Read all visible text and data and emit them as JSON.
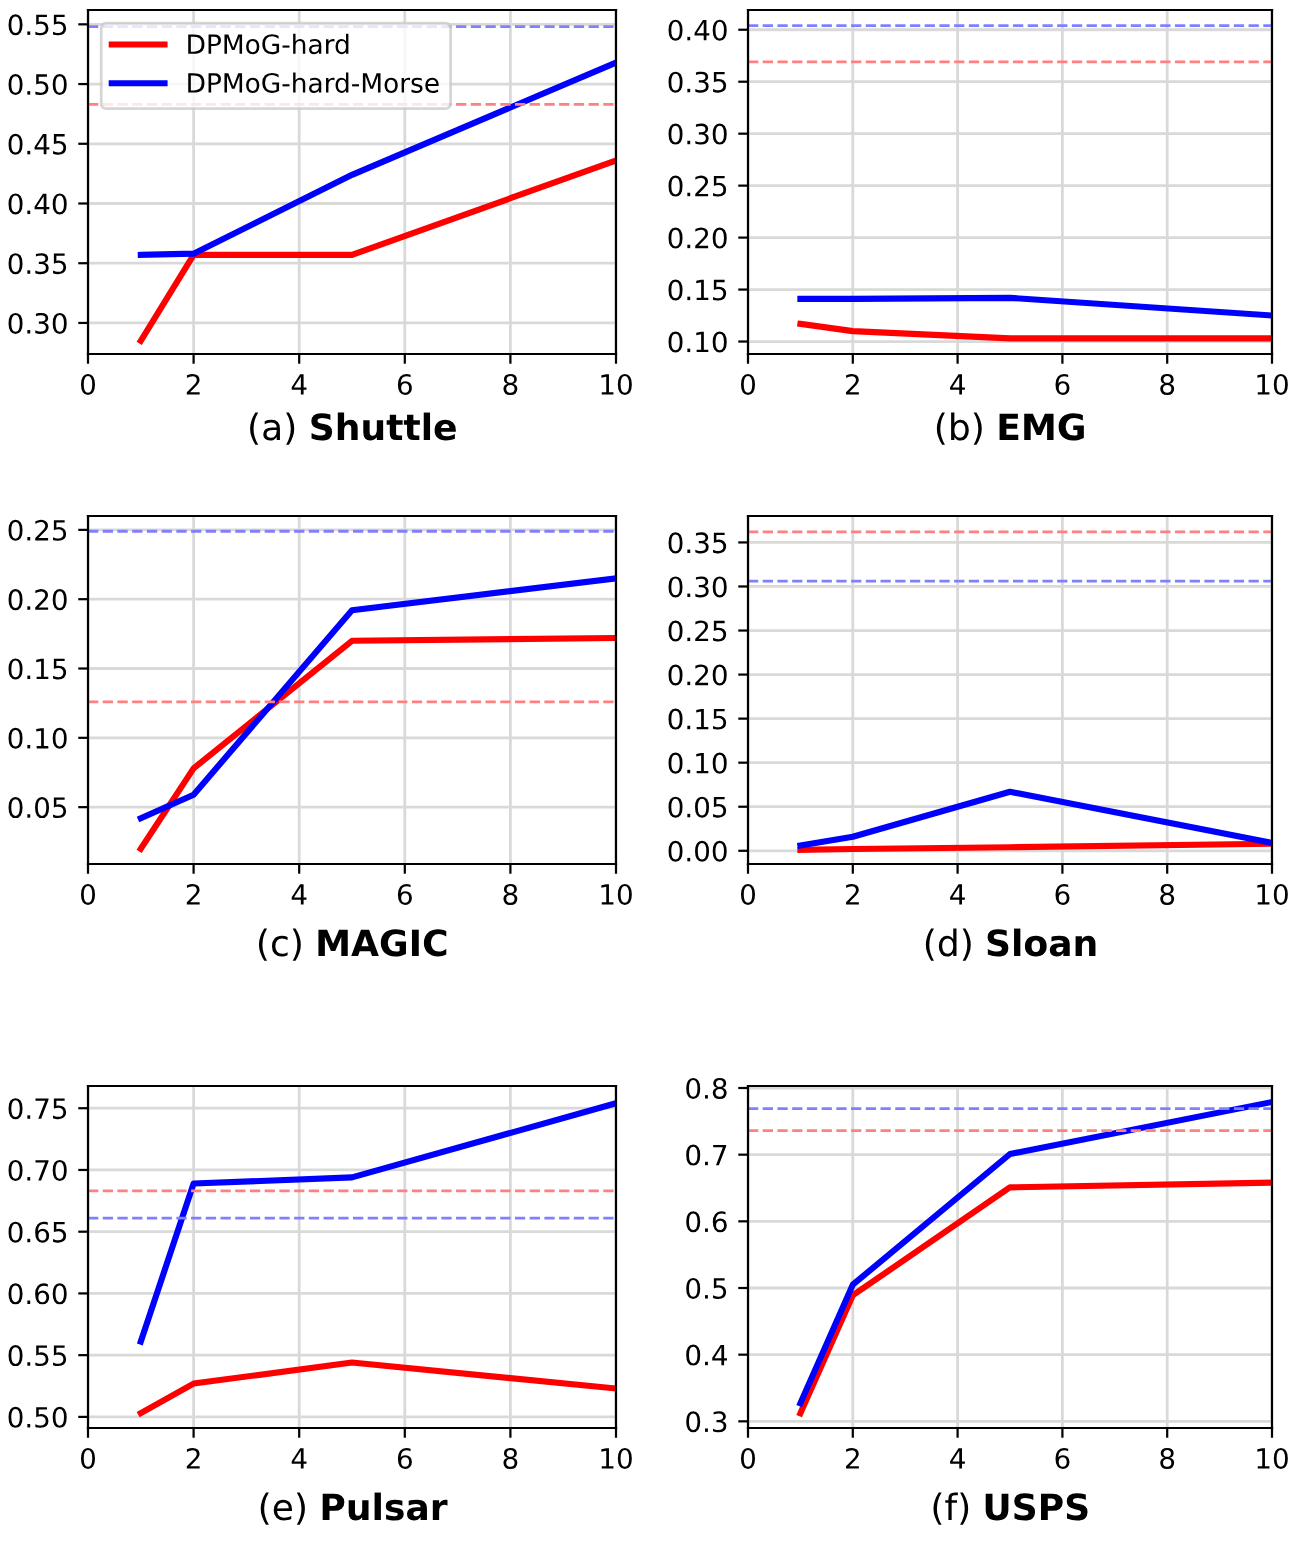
{
  "chart_data": [
    {
      "type": "line",
      "title": "(a) Shuttle",
      "x": [
        1,
        2,
        5,
        10
      ],
      "xlim": [
        0,
        10
      ],
      "xticks": [
        0,
        2,
        4,
        6,
        8,
        10
      ],
      "ylim": [
        0.274,
        0.562
      ],
      "yticks": [
        {
          "value": 0.3,
          "label": "0.30"
        },
        0.35,
        {
          "value": 0.4,
          "label": "0.40"
        },
        0.45,
        {
          "value": 0.5,
          "label": "0.50"
        },
        0.55
      ],
      "grid": true,
      "legend": "top left",
      "series": [
        {
          "name": "DPMoG-hard",
          "color": "#ff0000",
          "values": [
            0.285,
            0.357,
            0.357,
            0.436
          ]
        },
        {
          "name": "DPMoG-hard-Morse",
          "color": "#0000ff",
          "values": [
            0.357,
            0.358,
            0.424,
            0.518
          ]
        }
      ],
      "ref_lines": [
        {
          "axis": "y",
          "value": 0.483,
          "color": "#ff8080",
          "line_style": "dashed"
        },
        {
          "axis": "y",
          "value": 0.548,
          "color": "#8080ff",
          "line_style": "dashed"
        }
      ]
    },
    {
      "type": "line",
      "title": "(b) EMG",
      "x": [
        1,
        2,
        5,
        10
      ],
      "xlim": [
        0,
        10
      ],
      "xticks": [
        0,
        2,
        4,
        6,
        8,
        10
      ],
      "ylim": [
        0.088,
        0.419
      ],
      "yticks": [
        {
          "value": 0.1,
          "label": "0.10"
        },
        0.15,
        {
          "value": 0.2,
          "label": "0.20"
        },
        0.25,
        {
          "value": 0.3,
          "label": "0.30"
        },
        0.35,
        {
          "value": 0.4,
          "label": "0.40"
        }
      ],
      "grid": true,
      "series": [
        {
          "color": "#ff0000",
          "values": [
            0.117,
            0.11,
            0.103,
            0.103
          ]
        },
        {
          "color": "#0000ff",
          "values": [
            0.141,
            0.141,
            0.142,
            0.125
          ]
        }
      ],
      "ref_lines": [
        {
          "axis": "y",
          "value": 0.369,
          "color": "#ff8080",
          "line_style": "dashed"
        },
        {
          "axis": "y",
          "value": 0.404,
          "color": "#8080ff",
          "line_style": "dashed"
        }
      ]
    },
    {
      "type": "line",
      "title": "(c) MAGIC",
      "x": [
        1,
        2,
        5,
        10
      ],
      "xlim": [
        0,
        10
      ],
      "xticks": [
        0,
        2,
        4,
        6,
        8,
        10
      ],
      "ylim": [
        0.009,
        0.26
      ],
      "yticks": [
        0.05,
        {
          "value": 0.1,
          "label": "0.10"
        },
        0.15,
        {
          "value": 0.2,
          "label": "0.20"
        },
        0.25
      ],
      "grid": true,
      "series": [
        {
          "color": "#ff0000",
          "values": [
            0.02,
            0.078,
            0.17,
            0.172
          ]
        },
        {
          "color": "#0000ff",
          "values": [
            0.042,
            0.059,
            0.192,
            0.215
          ]
        }
      ],
      "ref_lines": [
        {
          "axis": "y",
          "value": 0.126,
          "color": "#ff8080",
          "line_style": "dashed"
        },
        {
          "axis": "y",
          "value": 0.249,
          "color": "#8080ff",
          "line_style": "dashed"
        }
      ]
    },
    {
      "type": "line",
      "title": "(d) Sloan",
      "x": [
        1,
        2,
        5,
        10
      ],
      "xlim": [
        0,
        10
      ],
      "xticks": [
        0,
        2,
        4,
        6,
        8,
        10
      ],
      "ylim": [
        -0.015,
        0.38
      ],
      "yticks": [
        {
          "value": 0.0,
          "label": "0.00"
        },
        0.05,
        {
          "value": 0.1,
          "label": "0.10"
        },
        0.15,
        {
          "value": 0.2,
          "label": "0.20"
        },
        0.25,
        {
          "value": 0.3,
          "label": "0.30"
        },
        0.35
      ],
      "grid": true,
      "series": [
        {
          "color": "#ff0000",
          "values": [
            0.001,
            0.002,
            0.004,
            0.008
          ]
        },
        {
          "color": "#0000ff",
          "values": [
            0.006,
            0.016,
            0.067,
            0.009
          ]
        }
      ],
      "ref_lines": [
        {
          "axis": "y",
          "value": 0.362,
          "color": "#ff8080",
          "line_style": "dashed"
        },
        {
          "axis": "y",
          "value": 0.306,
          "color": "#8080ff",
          "line_style": "dashed"
        }
      ]
    },
    {
      "type": "line",
      "title": "(e) Pulsar",
      "x": [
        1,
        2,
        5,
        10
      ],
      "xlim": [
        0,
        10
      ],
      "xticks": [
        0,
        2,
        4,
        6,
        8,
        10
      ],
      "ylim": [
        0.491,
        0.768
      ],
      "yticks": [
        {
          "value": 0.5,
          "label": "0.50"
        },
        0.55,
        {
          "value": 0.6,
          "label": "0.60"
        },
        0.65,
        {
          "value": 0.7,
          "label": "0.70"
        },
        0.75
      ],
      "grid": true,
      "series": [
        {
          "color": "#ff0000",
          "values": [
            0.503,
            0.527,
            0.544,
            0.523
          ]
        },
        {
          "color": "#0000ff",
          "values": [
            0.561,
            0.689,
            0.694,
            0.754
          ]
        }
      ],
      "ref_lines": [
        {
          "axis": "y",
          "value": 0.683,
          "color": "#ff8080",
          "line_style": "dashed"
        },
        {
          "axis": "y",
          "value": 0.661,
          "color": "#8080ff",
          "line_style": "dashed"
        }
      ]
    },
    {
      "type": "line",
      "title": "(f) USPS",
      "x": [
        1,
        2,
        5,
        10
      ],
      "xlim": [
        0,
        10
      ],
      "xticks": [
        0,
        2,
        4,
        6,
        8,
        10
      ],
      "ylim": [
        0.29,
        0.803
      ],
      "yticks": [
        0.3,
        0.4,
        0.5,
        0.6,
        0.7,
        0.8
      ],
      "grid": true,
      "series": [
        {
          "color": "#ff0000",
          "values": [
            0.312,
            0.489,
            0.651,
            0.658
          ]
        },
        {
          "color": "#0000ff",
          "values": [
            0.327,
            0.505,
            0.701,
            0.779
          ]
        }
      ],
      "ref_lines": [
        {
          "axis": "y",
          "value": 0.736,
          "color": "#ff8080",
          "line_style": "dashed"
        },
        {
          "axis": "y",
          "value": 0.769,
          "color": "#8080ff",
          "line_style": "dashed"
        }
      ]
    }
  ]
}
